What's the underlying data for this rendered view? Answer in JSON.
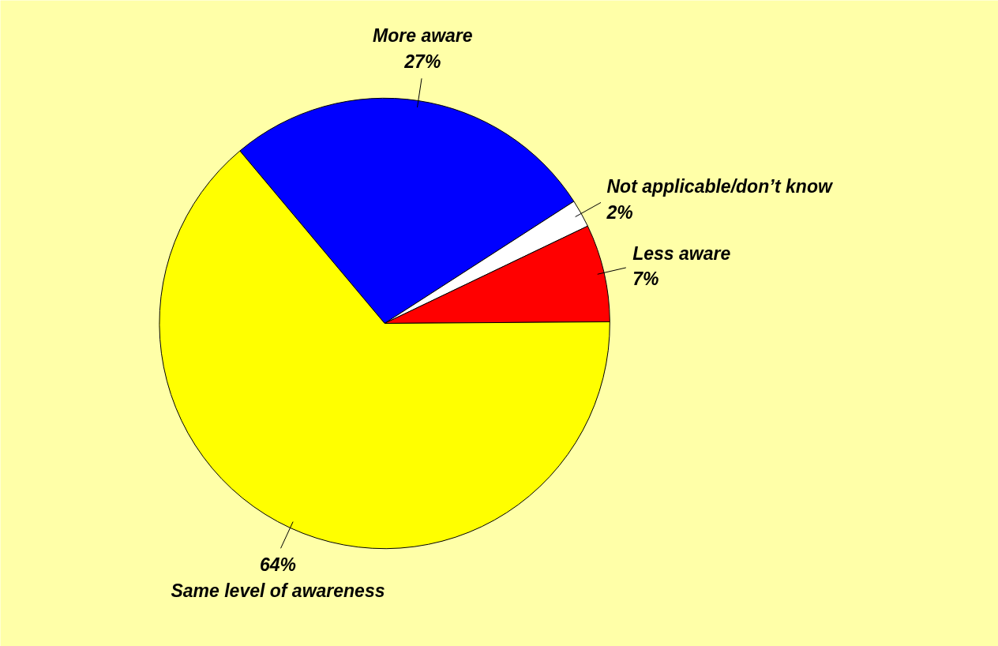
{
  "chart_data": {
    "type": "pie",
    "categories": [
      "More aware",
      "Not applicable/don’t know",
      "Less aware",
      "Same level of awareness"
    ],
    "values": [
      27,
      2,
      7,
      64
    ],
    "colors": [
      "#0000ff",
      "#ffffff",
      "#ff0000",
      "#ffff00"
    ],
    "value_labels": [
      "27%",
      "2%",
      "7%",
      "64%"
    ]
  }
}
